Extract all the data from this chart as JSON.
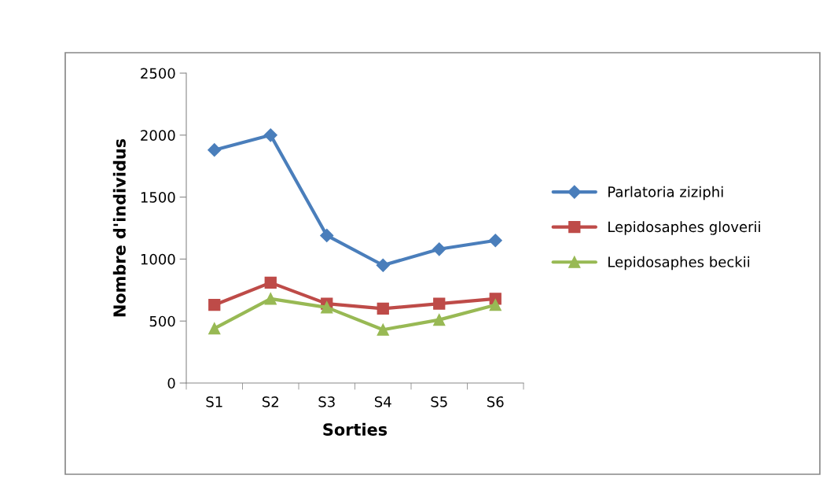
{
  "chart_data": {
    "type": "line",
    "xlabel": "Sorties",
    "ylabel": "Nombre d'individus",
    "categories": [
      "S1",
      "S2",
      "S3",
      "S4",
      "S5",
      "S6"
    ],
    "series": [
      {
        "name": "Parlatoria ziziphi",
        "color": "#4a7ebb",
        "marker": "diamond",
        "values": [
          1880,
          2000,
          1190,
          950,
          1080,
          1150
        ]
      },
      {
        "name": "Lepidosaphes gloverii",
        "color": "#be4b48",
        "marker": "square",
        "values": [
          630,
          810,
          640,
          600,
          640,
          680
        ]
      },
      {
        "name": "Lepidosaphes beckii",
        "color": "#98b954",
        "marker": "triangle",
        "values": [
          440,
          680,
          610,
          430,
          510,
          630
        ]
      }
    ],
    "ylim": [
      0,
      2500
    ],
    "yticks": [
      0,
      500,
      1000,
      1500,
      2000,
      2500
    ],
    "grid": false,
    "legend": "right"
  }
}
